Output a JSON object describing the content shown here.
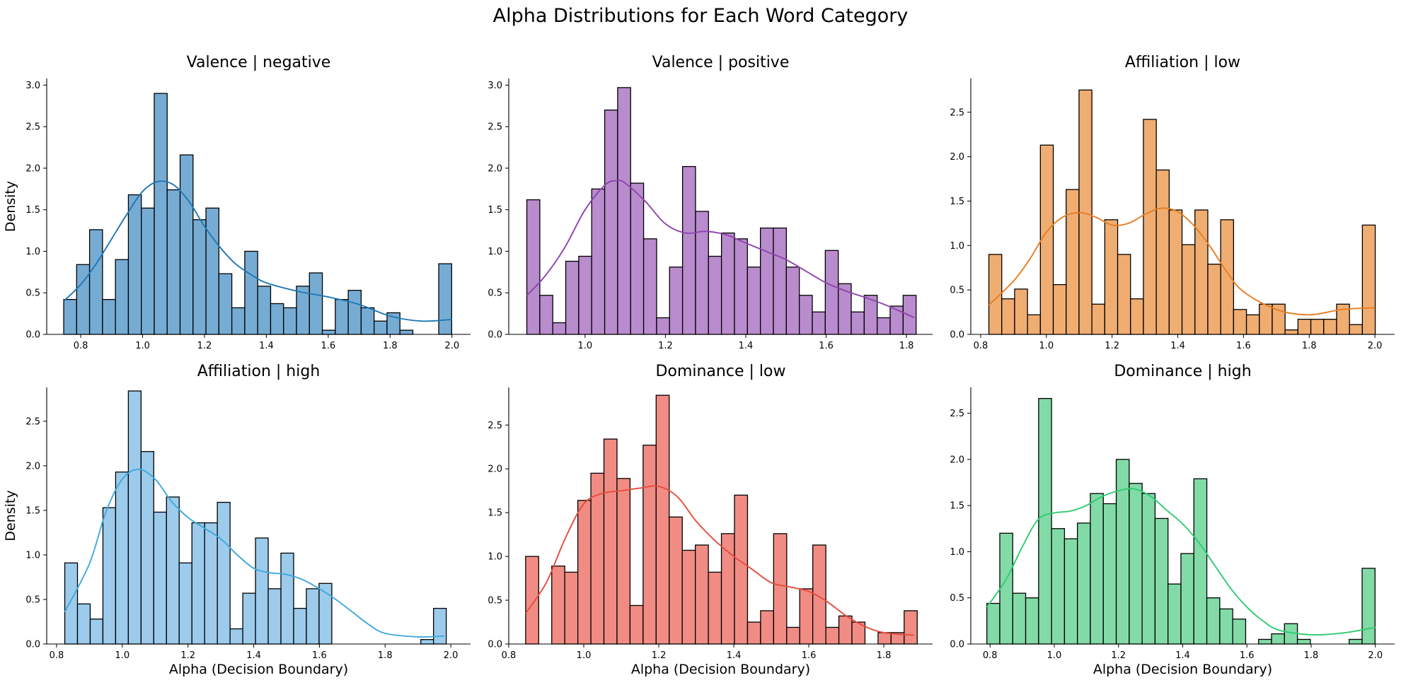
{
  "figure": {
    "title": "Alpha Distributions for Each Word Category"
  },
  "chart_data": [
    {
      "type": "bar",
      "title": "Valence | negative",
      "xlabel": "",
      "ylabel": "Density",
      "color": "#1f77b4",
      "bar_fill": "#76acd4",
      "xlim": [
        0.69,
        2.06
      ],
      "ylim": [
        0,
        3.08
      ],
      "xticks": [
        0.8,
        1.0,
        1.2,
        1.4,
        1.6,
        1.8,
        2.0
      ],
      "xtick_labels": [
        "0.8",
        "1.0",
        "1.2",
        "1.4",
        "1.6",
        "1.8",
        "2.0"
      ],
      "yticks": [
        0,
        0.5,
        1.0,
        1.5,
        2.0,
        2.5,
        3.0
      ],
      "ytick_labels": [
        "0.0",
        "0.5",
        "1.0",
        "1.5",
        "2.0",
        "2.5",
        "3.0"
      ],
      "bin_start": 0.745,
      "bin_width": 0.0418,
      "values": [
        0.42,
        0.84,
        1.26,
        0.42,
        0.9,
        1.68,
        1.52,
        2.9,
        1.74,
        2.16,
        1.38,
        1.52,
        0.73,
        0.32,
        1.0,
        0.58,
        0.37,
        0.32,
        0.58,
        0.74,
        0.05,
        0.42,
        0.53,
        0.32,
        0.16,
        0.26,
        0.05,
        0,
        0,
        0.85
      ],
      "kde_x": [
        0.745,
        0.8,
        0.85,
        0.9,
        0.95,
        1.0,
        1.05,
        1.1,
        1.15,
        1.2,
        1.25,
        1.3,
        1.35,
        1.4,
        1.5,
        1.6,
        1.7,
        1.8,
        1.9,
        2.0
      ],
      "kde_y": [
        0.4,
        0.6,
        0.85,
        1.15,
        1.45,
        1.72,
        1.84,
        1.8,
        1.6,
        1.3,
        1.05,
        0.85,
        0.72,
        0.62,
        0.52,
        0.45,
        0.36,
        0.22,
        0.16,
        0.18
      ]
    },
    {
      "type": "bar",
      "title": "Valence | positive",
      "xlabel": "",
      "ylabel": "",
      "color": "#8e44ad",
      "bar_fill": "#b98ccd",
      "xlim": [
        0.81,
        1.865
      ],
      "ylim": [
        0,
        3.08
      ],
      "xticks": [
        1.0,
        1.2,
        1.4,
        1.6,
        1.8
      ],
      "xtick_labels": [
        "1.0",
        "1.2",
        "1.4",
        "1.6",
        "1.8"
      ],
      "yticks": [
        0,
        0.5,
        1.0,
        1.5,
        2.0,
        2.5,
        3.0
      ],
      "ytick_labels": [
        "0.0",
        "0.5",
        "1.0",
        "1.5",
        "2.0",
        "2.5",
        "3.0"
      ],
      "bin_start": 0.855,
      "bin_width": 0.0323,
      "values": [
        1.62,
        0.47,
        0.14,
        0.88,
        0.94,
        1.75,
        2.7,
        2.97,
        1.82,
        1.15,
        0.2,
        0.81,
        2.02,
        1.48,
        0.94,
        1.22,
        1.15,
        0.81,
        1.28,
        1.28,
        0.81,
        0.47,
        0.27,
        1.01,
        0.61,
        0.27,
        0.47,
        0.2,
        0.34,
        0.47
      ],
      "kde_x": [
        0.855,
        0.9,
        0.95,
        1.0,
        1.05,
        1.08,
        1.1,
        1.15,
        1.2,
        1.25,
        1.3,
        1.35,
        1.4,
        1.45,
        1.5,
        1.55,
        1.6,
        1.65,
        1.7,
        1.75,
        1.82
      ],
      "kde_y": [
        0.47,
        0.7,
        1.05,
        1.5,
        1.8,
        1.85,
        1.82,
        1.6,
        1.33,
        1.22,
        1.24,
        1.2,
        1.1,
        1.0,
        0.9,
        0.76,
        0.62,
        0.52,
        0.44,
        0.35,
        0.2
      ]
    },
    {
      "type": "bar",
      "title": "Affiliation | low",
      "xlabel": "",
      "ylabel": "",
      "color": "#e67e22",
      "bar_fill": "#f0ad72",
      "xlim": [
        0.77,
        2.06
      ],
      "ylim": [
        0,
        2.88
      ],
      "xticks": [
        0.8,
        1.0,
        1.2,
        1.4,
        1.6,
        1.8,
        2.0
      ],
      "xtick_labels": [
        "0.8",
        "1.0",
        "1.2",
        "1.4",
        "1.6",
        "1.8",
        "2.0"
      ],
      "yticks": [
        0,
        0.5,
        1.0,
        1.5,
        2.0,
        2.5
      ],
      "ytick_labels": [
        "0.0",
        "0.5",
        "1.0",
        "1.5",
        "2.0",
        "2.5"
      ],
      "bin_start": 0.825,
      "bin_width": 0.0392,
      "values": [
        0.9,
        0.4,
        0.51,
        0.22,
        2.13,
        0.56,
        1.63,
        2.75,
        0.34,
        1.29,
        0.9,
        0.4,
        2.42,
        1.85,
        1.4,
        1.01,
        1.4,
        0.79,
        1.29,
        0.28,
        0.22,
        0.34,
        0.34,
        0.05,
        0.17,
        0.17,
        0.17,
        0.34,
        0.11,
        1.23
      ],
      "kde_x": [
        0.825,
        0.9,
        0.95,
        1.0,
        1.05,
        1.1,
        1.15,
        1.2,
        1.25,
        1.3,
        1.35,
        1.4,
        1.45,
        1.5,
        1.55,
        1.6,
        1.7,
        1.8,
        1.9,
        2.0
      ],
      "kde_y": [
        0.33,
        0.6,
        0.85,
        1.15,
        1.32,
        1.37,
        1.32,
        1.23,
        1.25,
        1.35,
        1.42,
        1.38,
        1.22,
        0.98,
        0.7,
        0.48,
        0.28,
        0.22,
        0.28,
        0.3
      ]
    },
    {
      "type": "bar",
      "title": "Affiliation | high",
      "xlabel": "Alpha (Decision Boundary)",
      "ylabel": "Density",
      "color": "#3fa9dc",
      "bar_fill": "#9ccbec",
      "xlim": [
        0.77,
        2.06
      ],
      "ylim": [
        0,
        2.88
      ],
      "xticks": [
        0.8,
        1.0,
        1.2,
        1.4,
        1.6,
        1.8,
        2.0
      ],
      "xtick_labels": [
        "0.8",
        "1.0",
        "1.2",
        "1.4",
        "1.6",
        "1.8",
        "2.0"
      ],
      "yticks": [
        0,
        0.5,
        1.0,
        1.5,
        2.0,
        2.5
      ],
      "ytick_labels": [
        "0.0",
        "0.5",
        "1.0",
        "1.5",
        "2.0",
        "2.5"
      ],
      "bin_start": 0.825,
      "bin_width": 0.0387,
      "values": [
        0.91,
        0.45,
        0.28,
        1.53,
        1.93,
        2.84,
        2.16,
        1.48,
        1.65,
        0.91,
        1.36,
        1.36,
        1.59,
        0.17,
        0.57,
        1.19,
        0.62,
        1.02,
        0.4,
        0.62,
        0.68,
        0,
        0,
        0,
        0,
        0,
        0,
        0,
        0.05,
        0.4
      ],
      "kde_x": [
        0.825,
        0.9,
        0.95,
        1.0,
        1.05,
        1.1,
        1.15,
        1.2,
        1.25,
        1.3,
        1.35,
        1.4,
        1.45,
        1.5,
        1.55,
        1.6,
        1.65,
        1.7,
        1.75,
        1.8,
        1.9,
        1.98
      ],
      "kde_y": [
        0.36,
        0.9,
        1.48,
        1.85,
        1.96,
        1.85,
        1.6,
        1.42,
        1.3,
        1.18,
        1.0,
        0.85,
        0.8,
        0.78,
        0.72,
        0.62,
        0.5,
        0.36,
        0.22,
        0.12,
        0.08,
        0.09
      ]
    },
    {
      "type": "bar",
      "title": "Dominance | low",
      "xlabel": "Alpha (Decision Boundary)",
      "ylabel": "",
      "color": "#e74c3c",
      "bar_fill": "#f08c84",
      "xlim": [
        0.8,
        1.93
      ],
      "ylim": [
        0,
        2.93
      ],
      "xticks": [
        0.8,
        1.0,
        1.2,
        1.4,
        1.6,
        1.8
      ],
      "xtick_labels": [
        "0.8",
        "1.0",
        "1.2",
        "1.4",
        "1.6",
        "1.8"
      ],
      "yticks": [
        0,
        0.5,
        1.0,
        1.5,
        2.0,
        2.5
      ],
      "ytick_labels": [
        "0.0",
        "0.5",
        "1.0",
        "1.5",
        "2.0",
        "2.5"
      ],
      "bin_start": 0.845,
      "bin_width": 0.0348,
      "values": [
        1.0,
        0,
        0.89,
        0.82,
        1.64,
        1.95,
        2.34,
        1.89,
        0.44,
        2.27,
        2.84,
        1.45,
        1.07,
        1.13,
        0.82,
        1.26,
        1.7,
        0.25,
        0.38,
        1.26,
        0.19,
        0.63,
        1.13,
        0.19,
        0.32,
        0.25,
        0,
        0.13,
        0.13,
        0.38
      ],
      "kde_x": [
        0.845,
        0.9,
        0.95,
        1.0,
        1.05,
        1.1,
        1.15,
        1.2,
        1.25,
        1.3,
        1.35,
        1.4,
        1.45,
        1.5,
        1.55,
        1.6,
        1.65,
        1.7,
        1.75,
        1.8,
        1.88
      ],
      "kde_y": [
        0.35,
        0.7,
        1.2,
        1.6,
        1.72,
        1.75,
        1.78,
        1.8,
        1.68,
        1.4,
        1.18,
        1.0,
        0.85,
        0.7,
        0.65,
        0.6,
        0.48,
        0.32,
        0.2,
        0.13,
        0.1
      ]
    },
    {
      "type": "bar",
      "title": "Dominance | high",
      "xlabel": "Alpha (Decision Boundary)",
      "ylabel": "",
      "color": "#2ecc71",
      "bar_fill": "#82dba7",
      "xlim": [
        0.74,
        2.06
      ],
      "ylim": [
        0,
        2.78
      ],
      "xticks": [
        0.8,
        1.0,
        1.2,
        1.4,
        1.6,
        1.8,
        2.0
      ],
      "xtick_labels": [
        "0.8",
        "1.0",
        "1.2",
        "1.4",
        "1.6",
        "1.8",
        "2.0"
      ],
      "yticks": [
        0,
        0.5,
        1.0,
        1.5,
        2.0,
        2.5
      ],
      "ytick_labels": [
        "0.0",
        "0.5",
        "1.0",
        "1.5",
        "2.0",
        "2.5"
      ],
      "bin_start": 0.79,
      "bin_width": 0.0403,
      "values": [
        0.44,
        1.2,
        0.55,
        0.5,
        2.66,
        1.25,
        1.14,
        1.31,
        1.63,
        1.52,
        2.0,
        1.74,
        1.63,
        1.36,
        0.65,
        0.98,
        1.79,
        0.5,
        0.38,
        0.27,
        0,
        0.05,
        0.11,
        0.22,
        0.05,
        0,
        0,
        0,
        0.05,
        0.82
      ],
      "kde_x": [
        0.79,
        0.85,
        0.9,
        0.95,
        1.0,
        1.05,
        1.1,
        1.15,
        1.2,
        1.25,
        1.3,
        1.35,
        1.4,
        1.45,
        1.5,
        1.55,
        1.6,
        1.65,
        1.7,
        1.8,
        1.9,
        2.0
      ],
      "kde_y": [
        0.4,
        0.7,
        1.05,
        1.35,
        1.42,
        1.44,
        1.5,
        1.6,
        1.66,
        1.68,
        1.6,
        1.45,
        1.3,
        1.1,
        0.85,
        0.6,
        0.4,
        0.25,
        0.15,
        0.1,
        0.12,
        0.18
      ]
    }
  ]
}
